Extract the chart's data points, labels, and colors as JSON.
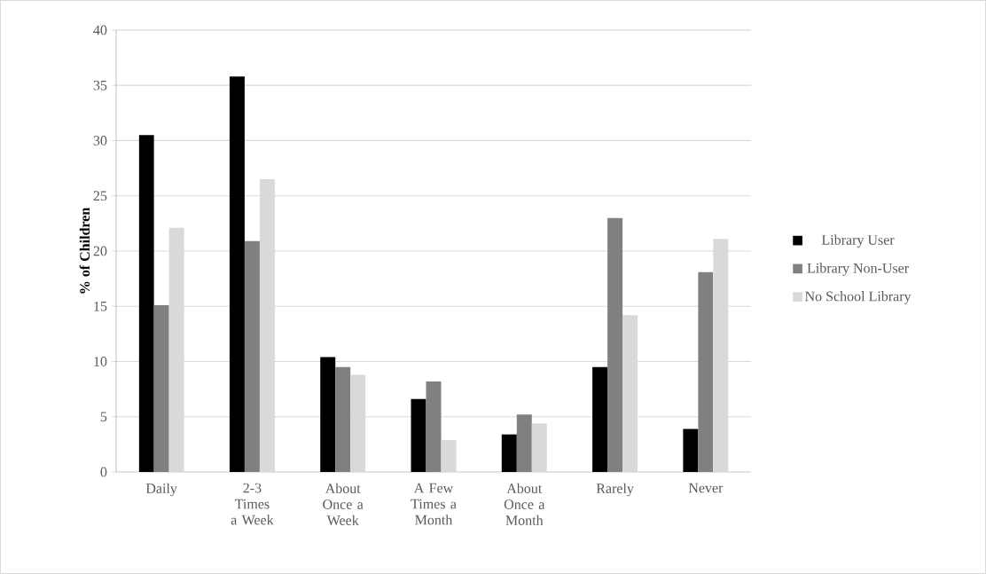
{
  "chart_data": {
    "type": "bar",
    "ylabel": "% of Children",
    "categories": [
      "Daily",
      "2-3 Times a Week",
      "About Once a Week",
      "A Few Times a Month",
      "About Once a Month",
      "Rarely",
      "Never"
    ],
    "series": [
      {
        "name": "Library User",
        "color": "#000000",
        "values": [
          30.5,
          35.8,
          10.4,
          6.6,
          3.4,
          9.5,
          3.9
        ]
      },
      {
        "name": "Library Non-User",
        "color": "#808080",
        "values": [
          15.1,
          20.9,
          9.5,
          8.2,
          5.2,
          23.0,
          18.1
        ]
      },
      {
        "name": "No School Library",
        "color": "#d9d9d9",
        "values": [
          22.1,
          26.5,
          8.8,
          2.9,
          4.4,
          14.2,
          21.1
        ]
      }
    ],
    "ylim": [
      0,
      40
    ],
    "yticks": [
      0,
      5,
      10,
      15,
      20,
      25,
      30,
      35,
      40
    ],
    "grid": "y",
    "legend": "right"
  }
}
